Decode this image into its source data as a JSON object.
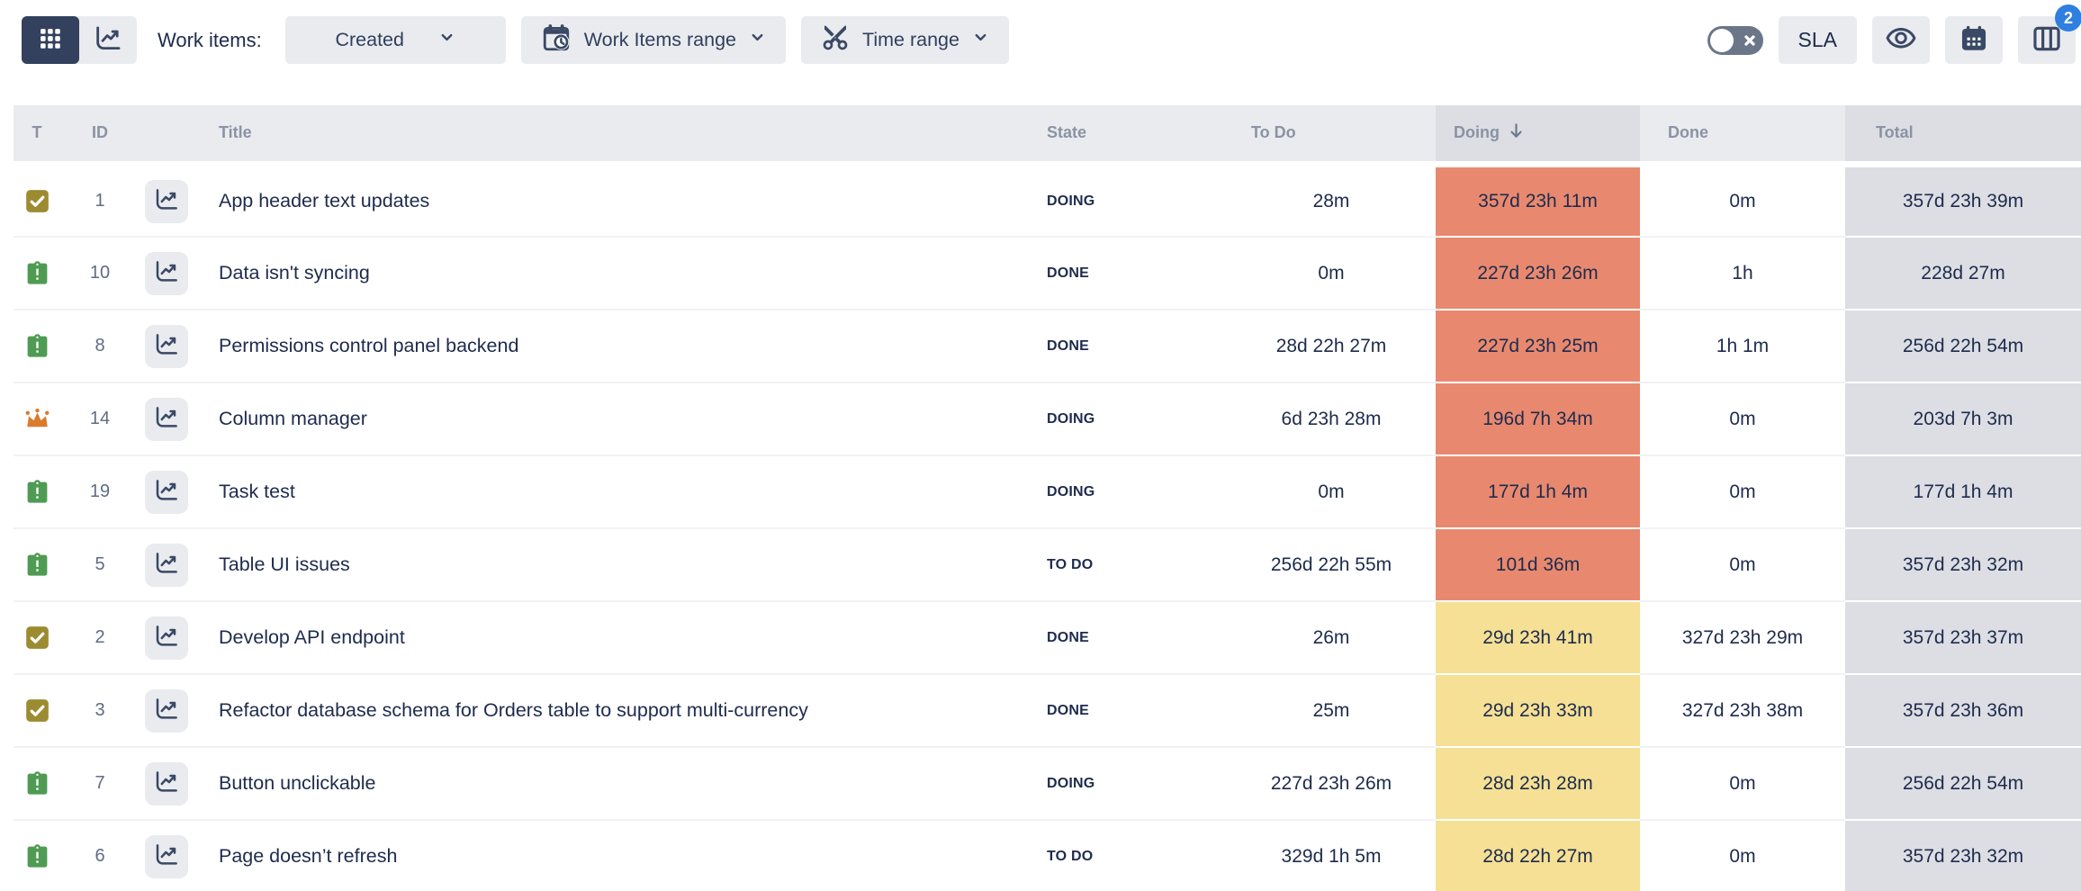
{
  "toolbar": {
    "work_items_label": "Work items:",
    "created_label": "Created",
    "work_items_range_label": "Work Items range",
    "time_range_label": "Time range",
    "sla_label": "SLA",
    "columns_badge_count": "2",
    "toggle_state": "off",
    "icons": [
      "grid-icon",
      "line-chart-icon",
      "calendar-clock-icon",
      "scissors-icon",
      "chevron-down-icon",
      "eye-icon",
      "calendar-icon",
      "columns-icon"
    ]
  },
  "table": {
    "headers": {
      "type": "T",
      "id": "ID",
      "title": "Title",
      "state": "State",
      "todo": "To Do",
      "doing": "Doing",
      "done": "Done",
      "total": "Total"
    },
    "sort": {
      "column": "Doing",
      "direction": "descending",
      "icon": "sort-descending-icon"
    },
    "rows": [
      {
        "type_icon": "check-icon",
        "id": "1",
        "title": "App header text updates",
        "state": "DOING",
        "todo": "28m",
        "doing": "357d 23h 11m",
        "doing_highlight": "red",
        "done": "0m",
        "total": "357d 23h 39m"
      },
      {
        "type_icon": "task-icon",
        "id": "10",
        "title": "Data isn't syncing",
        "state": "DONE",
        "todo": "0m",
        "doing": "227d 23h 26m",
        "doing_highlight": "red",
        "done": "1h",
        "total": "228d 27m"
      },
      {
        "type_icon": "task-icon",
        "id": "8",
        "title": "Permissions control panel backend",
        "state": "DONE",
        "todo": "28d 22h 27m",
        "doing": "227d 23h 25m",
        "doing_highlight": "red",
        "done": "1h 1m",
        "total": "256d 22h 54m"
      },
      {
        "type_icon": "epic-crown-icon",
        "id": "14",
        "title": "Column manager",
        "state": "DOING",
        "todo": "6d 23h 28m",
        "doing": "196d 7h 34m",
        "doing_highlight": "red",
        "done": "0m",
        "total": "203d 7h 3m"
      },
      {
        "type_icon": "task-icon",
        "id": "19",
        "title": "Task test",
        "state": "DOING",
        "todo": "0m",
        "doing": "177d 1h 4m",
        "doing_highlight": "red",
        "done": "0m",
        "total": "177d 1h 4m"
      },
      {
        "type_icon": "task-icon",
        "id": "5",
        "title": "Table UI issues",
        "state": "TO DO",
        "todo": "256d 22h 55m",
        "doing": "101d 36m",
        "doing_highlight": "red",
        "done": "0m",
        "total": "357d 23h 32m"
      },
      {
        "type_icon": "check-icon",
        "id": "2",
        "title": "Develop API endpoint",
        "state": "DONE",
        "todo": "26m",
        "doing": "29d 23h 41m",
        "doing_highlight": "yellow",
        "done": "327d 23h 29m",
        "total": "357d 23h 37m"
      },
      {
        "type_icon": "check-icon",
        "id": "3",
        "title": "Refactor database schema for Orders table to support multi-currency",
        "state": "DONE",
        "todo": "25m",
        "doing": "29d 23h 33m",
        "doing_highlight": "yellow",
        "done": "327d 23h 38m",
        "total": "357d 23h 36m"
      },
      {
        "type_icon": "task-icon",
        "id": "7",
        "title": "Button unclickable",
        "state": "DOING",
        "todo": "227d 23h 26m",
        "doing": "28d 23h 28m",
        "doing_highlight": "yellow",
        "done": "0m",
        "total": "256d 22h 54m"
      },
      {
        "type_icon": "task-icon",
        "id": "6",
        "title": "Page doesn’t refresh",
        "state": "TO DO",
        "todo": "329d 1h 5m",
        "doing": "28d 22h 27m",
        "doing_highlight": "yellow",
        "done": "0m",
        "total": "357d 23h 32m"
      }
    ]
  },
  "colors": {
    "accent_navy": "#33415E",
    "button_gray": "#EAEBEF",
    "header_bg": "#EAEBEF",
    "sorted_header_bg": "#DDDEE3",
    "doing_red_bg": "#E8896F",
    "doing_yellow_bg": "#F5E095",
    "total_column_bg": "#DCDEE3",
    "badge_blue": "#2E7FE0",
    "type_check_olive": "#9C8B31",
    "type_task_green": "#4F9B53",
    "type_epic_orange": "#DB7B2E",
    "text_navy": "#1e2b4d",
    "header_text_gray": "#8A93A4"
  }
}
